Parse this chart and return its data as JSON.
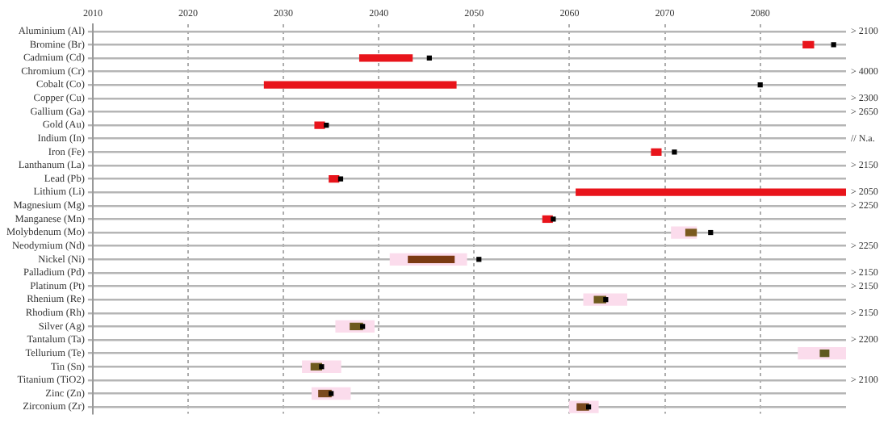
{
  "chart_data": {
    "type": "bar",
    "orientation": "horizontal",
    "grid": true,
    "legend": false,
    "categories": [
      "Aluminium (Al)",
      "Bromine (Br)",
      "Cadmium (Cd)",
      "Chromium (Cr)",
      "Cobalt (Co)",
      "Copper (Cu)",
      "Gallium (Ga)",
      "Gold (Au)",
      "Indium (In)",
      "Iron (Fe)",
      "Lanthanum (La)",
      "Lead (Pb)",
      "Lithium (Li)",
      "Magnesium (Mg)",
      "Manganese (Mn)",
      "Molybdenum (Mo)",
      "Neodymium (Nd)",
      "Nickel (Ni)",
      "Palladium (Pd)",
      "Platinum (Pt)",
      "Rhenium (Re)",
      "Rhodium (Rh)",
      "Silver (Ag)",
      "Tantalum (Ta)",
      "Tellurium (Te)",
      "Tin (Sn)",
      "Titanium (TiO2)",
      "Zinc (Zn)",
      "Zirconium (Zr)"
    ],
    "xlim": [
      2010,
      2089
    ],
    "xticks": [
      2010,
      2020,
      2030,
      2040,
      2050,
      2060,
      2070,
      2080
    ],
    "series": [
      {
        "color": "#fbdcec",
        "base": [
          null,
          null,
          null,
          null,
          null,
          null,
          null,
          null,
          null,
          null,
          null,
          null,
          null,
          null,
          null,
          2070.7,
          null,
          2041.2,
          null,
          null,
          2061.5,
          null,
          2035.5,
          null,
          2084,
          2032,
          null,
          2033,
          2060
        ],
        "values": [
          null,
          null,
          null,
          null,
          null,
          null,
          null,
          null,
          null,
          null,
          null,
          null,
          null,
          null,
          null,
          2.6,
          null,
          8,
          null,
          null,
          4.5,
          null,
          4,
          null,
          5,
          4,
          null,
          4,
          3
        ]
      },
      {
        "colors": [
          "#e8141b",
          "#e8141b",
          "#e8141b",
          "#e8141b",
          "#e8141b",
          "#e8141b",
          "#e8141b",
          "#e8141b",
          "#e8141b",
          "#e8141b",
          "#e8141b",
          "#e8141b",
          "#e8141b",
          "#e8141b",
          "#e8141b",
          "#7a5a1e",
          "#e8141b",
          "#7b3a12",
          "#e8141b",
          "#e8141b",
          "#6f5a1e",
          "#e8141b",
          "#6f5a1e",
          "#e8141b",
          "#5f5a1e",
          "#6f5a1e",
          "#e8141b",
          "#7a4a1e",
          "#7a4a1e"
        ],
        "base": [
          null,
          2084.5,
          2038,
          null,
          2028,
          null,
          null,
          2033.3,
          null,
          2068.6,
          null,
          2034.8,
          2060.7,
          null,
          2057.2,
          2072.2,
          null,
          2043.1,
          null,
          null,
          2062.6,
          null,
          2037,
          null,
          2086.3,
          2032.9,
          null,
          2033.7,
          2060.8
        ],
        "values": [
          null,
          1.1,
          5.5,
          null,
          20.1,
          null,
          null,
          1,
          null,
          1,
          null,
          1,
          28.3,
          null,
          1,
          1.1,
          null,
          4.8,
          null,
          null,
          1.2,
          null,
          1.3,
          null,
          0.9,
          1.1,
          null,
          1.3,
          1.2
        ]
      },
      {
        "type": "scatter",
        "color": "#000000",
        "marker": "square",
        "values": [
          null,
          2087.7,
          2045.3,
          null,
          2080,
          null,
          null,
          2034.5,
          null,
          2071,
          null,
          2036,
          null,
          null,
          2058.3,
          2074.8,
          null,
          2050.5,
          null,
          null,
          2063.8,
          null,
          2038.3,
          null,
          null,
          2034,
          null,
          2035,
          2062
        ]
      }
    ],
    "y2_categories": [
      "> 2100",
      null,
      null,
      "> 4000",
      null,
      "> 2300",
      "> 2650",
      null,
      "// N.a.",
      null,
      "> 2150",
      null,
      "> 2050",
      "> 2250",
      null,
      null,
      "> 2250",
      null,
      "> 2150",
      "> 2150",
      null,
      "> 2150",
      null,
      "> 2200",
      null,
      null,
      "> 2100",
      null,
      null
    ]
  }
}
